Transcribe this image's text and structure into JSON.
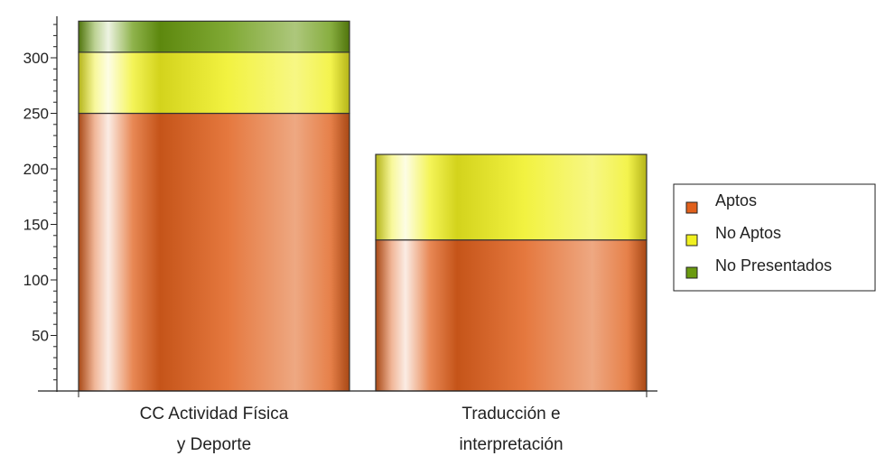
{
  "chart_data": {
    "type": "bar",
    "stacked": true,
    "title": "",
    "xlabel": "",
    "ylabel": "",
    "ylim": [
      0,
      330
    ],
    "yticks": [
      50,
      100,
      150,
      200,
      250,
      300
    ],
    "categories": [
      [
        "CC Actividad Física",
        "y Deporte"
      ],
      [
        "Traducción e",
        "interpretación"
      ]
    ],
    "series": [
      {
        "name": "Aptos",
        "color": "#e0601c",
        "values": [
          250,
          136
        ]
      },
      {
        "name": "No Aptos",
        "color": "#f0f020",
        "values": [
          55,
          77
        ]
      },
      {
        "name": "No Presentados",
        "color": "#6a9a10",
        "values": [
          28,
          0
        ]
      }
    ],
    "grid": false,
    "legend_position": "right"
  }
}
